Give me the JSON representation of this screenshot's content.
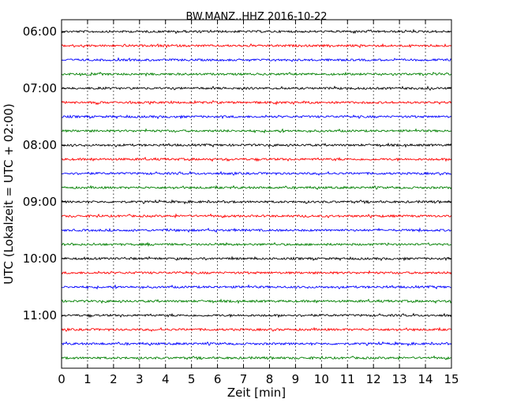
{
  "chart_data": {
    "type": "line",
    "title": "BW.MANZ..HHZ 2016-10-22",
    "xlabel": "Zeit  [min]",
    "ylabel": "UTC (Lokalzeit = UTC + 02:00)",
    "xlim": [
      0,
      15
    ],
    "x_ticks": [
      "0",
      "1",
      "2",
      "3",
      "4",
      "5",
      "6",
      "7",
      "8",
      "9",
      "10",
      "11",
      "12",
      "13",
      "14",
      "15"
    ],
    "y_tick_labels": [
      "06:00",
      "07:00",
      "08:00",
      "09:00",
      "10:00",
      "11:00"
    ],
    "grid": "vertical-dotted",
    "trace_colors": [
      "#000000",
      "#ff0000",
      "#0000ff",
      "#008000"
    ],
    "traces_start": "06:00",
    "traces_end": "11:45",
    "trace_interval_minutes": 15,
    "trace_count": 24
  }
}
